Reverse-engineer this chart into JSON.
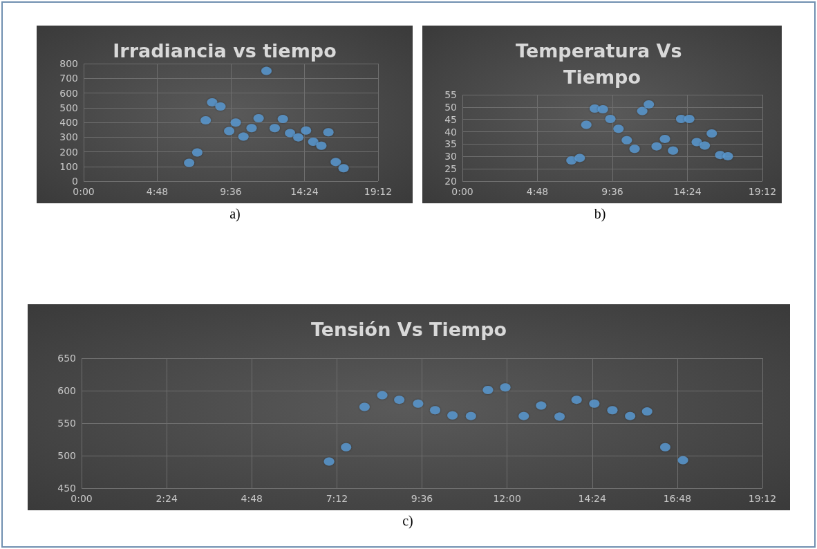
{
  "chart_data": [
    {
      "type": "scatter",
      "title": "Irradiancia vs tiempo",
      "annotations": [
        "a)"
      ],
      "marker": "circle",
      "grid": true,
      "xlim": [
        0,
        19.2
      ],
      "xticks": [
        {
          "value": 0,
          "label": "0:00"
        },
        {
          "value": 4.8,
          "label": "4:48"
        },
        {
          "value": 9.6,
          "label": "9:36"
        },
        {
          "value": 14.4,
          "label": "14:24"
        },
        {
          "value": 19.2,
          "label": "19:12"
        }
      ],
      "ylim": [
        0,
        800
      ],
      "yticks": [
        0,
        100,
        200,
        300,
        400,
        500,
        600,
        700,
        800
      ],
      "series": [
        {
          "color": "#5b9bd5",
          "x": [
            6.88,
            7.41,
            7.96,
            8.38,
            8.92,
            9.49,
            9.92,
            10.42,
            10.95,
            11.41,
            11.92,
            12.46,
            12.99,
            13.46,
            14.0,
            14.5,
            14.97,
            15.5,
            15.96,
            16.44,
            16.95
          ],
          "values": [
            125,
            195,
            414,
            537,
            508,
            341,
            399,
            303,
            361,
            428,
            750,
            361,
            423,
            327,
            298,
            345,
            268,
            241,
            333,
            130,
            88
          ]
        }
      ]
    },
    {
      "type": "scatter",
      "title": "Temperatura Vs Tiempo",
      "annotations": [
        "b)"
      ],
      "marker": "circle",
      "grid": true,
      "xlim": [
        0,
        19.2
      ],
      "xticks": [
        {
          "value": 0,
          "label": "0:00"
        },
        {
          "value": 4.8,
          "label": "4:48"
        },
        {
          "value": 9.6,
          "label": "9:36"
        },
        {
          "value": 14.4,
          "label": "14:24"
        },
        {
          "value": 19.2,
          "label": "19:12"
        }
      ],
      "ylim": [
        20,
        55
      ],
      "yticks": [
        20,
        25,
        30,
        35,
        40,
        45,
        50,
        55
      ],
      "series": [
        {
          "color": "#5b9bd5",
          "x": [
            6.98,
            7.51,
            7.93,
            8.47,
            8.99,
            9.47,
            9.99,
            10.52,
            11.02,
            11.51,
            11.93,
            12.43,
            12.96,
            13.48,
            14.0,
            14.52,
            15.0,
            15.51,
            15.96,
            16.5,
            16.99
          ],
          "values": [
            28.4,
            29.4,
            42.8,
            49.4,
            49.1,
            45.2,
            41.2,
            36.6,
            33.1,
            48.4,
            51.1,
            34.1,
            37.1,
            32.4,
            45.2,
            45.2,
            35.8,
            34.4,
            39.3,
            30.6,
            30.1
          ]
        }
      ]
    },
    {
      "type": "scatter",
      "title": "Tensión Vs Tiempo",
      "annotations": [
        "c)"
      ],
      "marker": "circle",
      "grid": true,
      "xlim": [
        0,
        19.2
      ],
      "xticks": [
        {
          "value": 0,
          "label": "0:00"
        },
        {
          "value": 2.4,
          "label": "2:24"
        },
        {
          "value": 4.8,
          "label": "4:48"
        },
        {
          "value": 7.2,
          "label": "7:12"
        },
        {
          "value": 9.6,
          "label": "9:36"
        },
        {
          "value": 12,
          "label": "12:00"
        },
        {
          "value": 14.4,
          "label": "14:24"
        },
        {
          "value": 16.8,
          "label": "16:48"
        },
        {
          "value": 19.2,
          "label": "19:12"
        }
      ],
      "ylim": [
        450,
        650
      ],
      "yticks": [
        450,
        500,
        550,
        600,
        650
      ],
      "series": [
        {
          "color": "#5b9bd5",
          "x": [
            6.98,
            7.46,
            7.98,
            8.48,
            8.96,
            9.49,
            9.97,
            10.46,
            10.98,
            11.46,
            11.95,
            12.47,
            12.96,
            13.48,
            13.96,
            14.46,
            14.97,
            15.47,
            15.95,
            16.46,
            16.96
          ],
          "values": [
            491,
            513,
            575,
            593,
            586,
            580,
            570,
            562,
            561,
            601,
            605,
            561,
            577,
            560,
            586,
            580,
            570,
            561,
            568,
            513,
            493
          ]
        }
      ]
    }
  ]
}
